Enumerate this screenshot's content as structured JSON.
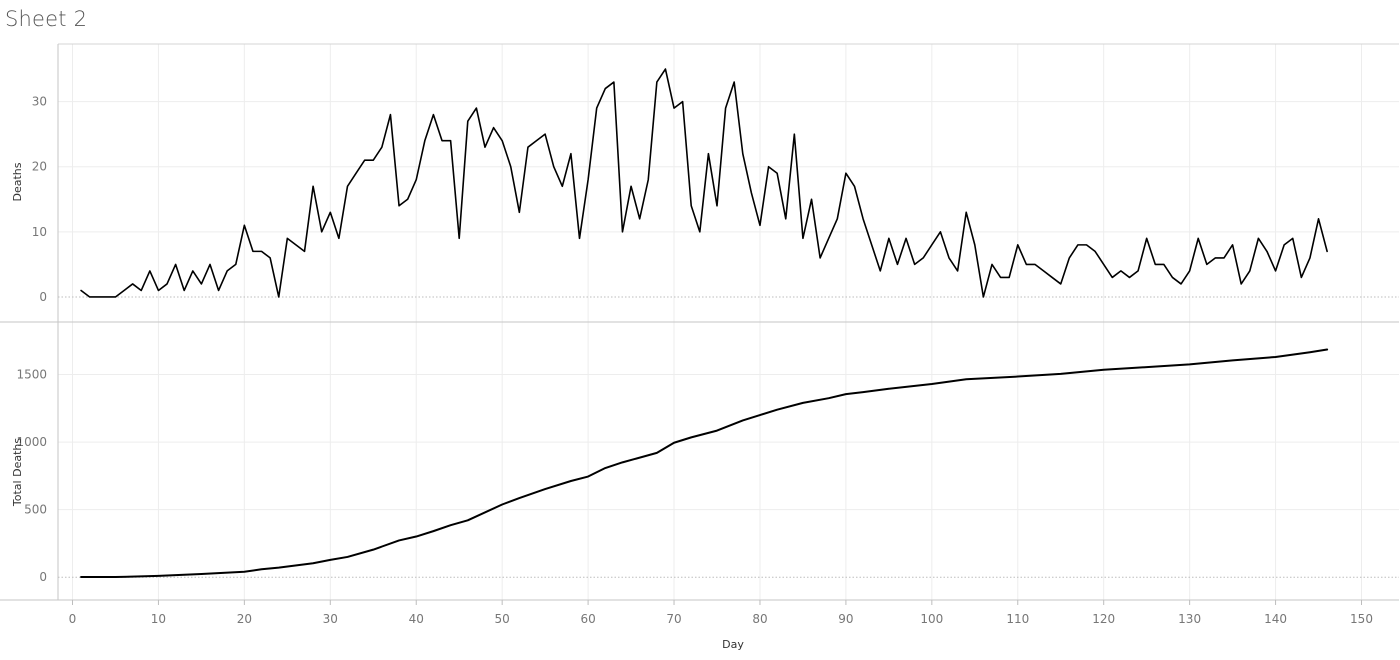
{
  "sheet": {
    "title": "Sheet 2"
  },
  "chart_data": {
    "type": "line",
    "xlabel": "Day",
    "xlim": [
      0,
      153
    ],
    "x_ticks": [
      0,
      10,
      20,
      30,
      40,
      50,
      60,
      70,
      80,
      90,
      100,
      110,
      120,
      130,
      140,
      150
    ],
    "grid": true,
    "line_color": "#000000",
    "panes": [
      {
        "ylabel": "Deaths",
        "ylim": [
          -2,
          37
        ],
        "y_ticks": [
          0,
          10,
          20,
          30
        ],
        "series": [
          {
            "x": [
              1,
              2,
              3,
              4,
              5,
              6,
              7,
              8,
              9,
              10,
              11,
              12,
              13,
              14,
              15,
              16,
              17,
              18,
              19,
              20,
              21,
              22,
              23,
              24,
              25,
              26,
              27,
              28,
              29,
              30,
              31,
              32,
              33,
              34,
              35,
              36,
              37,
              38,
              39,
              40,
              41,
              42,
              43,
              44,
              45,
              46,
              47,
              48,
              49,
              50,
              51,
              52,
              53,
              54,
              55,
              56,
              57,
              58,
              59,
              60,
              61,
              62,
              63,
              64,
              65,
              66,
              67,
              68,
              69,
              70,
              71,
              72,
              73,
              74,
              75,
              76,
              77,
              78,
              79,
              80,
              81,
              82,
              83,
              84,
              85,
              86,
              87,
              88,
              89,
              90,
              91,
              92,
              93,
              94,
              95,
              96,
              97,
              98,
              99,
              100,
              101,
              102,
              103,
              104,
              105,
              106,
              107,
              108,
              109,
              110,
              111,
              112,
              113,
              114,
              115,
              116,
              117,
              118,
              119,
              120,
              121,
              122,
              123,
              124,
              125,
              126,
              127,
              128,
              129,
              130,
              131,
              132,
              133,
              134,
              135,
              136,
              137,
              138,
              139,
              140,
              141,
              142,
              143,
              144,
              145,
              146
            ],
            "values": [
              1,
              0,
              0,
              0,
              0,
              1,
              2,
              1,
              4,
              1,
              2,
              5,
              1,
              4,
              2,
              5,
              1,
              4,
              5,
              11,
              7,
              7,
              6,
              0,
              9,
              8,
              7,
              17,
              10,
              13,
              9,
              17,
              19,
              21,
              21,
              23,
              28,
              14,
              15,
              18,
              24,
              28,
              24,
              24,
              9,
              27,
              29,
              23,
              26,
              24,
              20,
              13,
              23,
              24,
              25,
              20,
              17,
              22,
              9,
              18,
              29,
              32,
              33,
              10,
              17,
              12,
              18,
              33,
              35,
              29,
              30,
              14,
              10,
              22,
              14,
              29,
              33,
              22,
              16,
              11,
              20,
              19,
              12,
              25,
              9,
              15,
              6,
              9,
              12,
              19,
              17,
              12,
              8,
              4,
              9,
              5,
              9,
              5,
              6,
              8,
              10,
              6,
              4,
              13,
              8,
              0,
              5,
              3,
              3,
              8,
              5,
              5,
              4,
              3,
              2,
              6,
              8,
              8,
              7,
              5,
              3,
              4,
              3,
              4,
              9,
              5,
              5,
              3,
              2,
              4,
              9,
              5,
              6,
              6,
              8,
              2,
              4,
              9,
              7,
              4,
              8,
              9,
              3,
              6,
              12,
              7
            ]
          }
        ]
      },
      {
        "ylabel": "Total Deaths",
        "ylim": [
          -80,
          1800
        ],
        "y_ticks": [
          0,
          500,
          1000,
          1500
        ],
        "series": [
          {
            "x": [
              1,
              5,
              10,
              15,
              20,
              22,
              24,
              28,
              30,
              32,
              35,
              38,
              40,
              42,
              44,
              46,
              50,
              52,
              55,
              58,
              60,
              62,
              64,
              68,
              70,
              72,
              75,
              78,
              80,
              82,
              85,
              88,
              90,
              92,
              95,
              100,
              104,
              110,
              115,
              120,
              125,
              130,
              135,
              140,
              144,
              146
            ],
            "values": [
              1,
              1,
              10,
              24,
              40,
              59,
              71,
              103,
              128,
              150,
              204,
              272,
              301,
              341,
              385,
              421,
              538,
              586,
              652,
              712,
              745,
              808,
              850,
              920,
              995,
              1035,
              1085,
              1160,
              1200,
              1240,
              1290,
              1325,
              1355,
              1370,
              1395,
              1430,
              1465,
              1485,
              1505,
              1535,
              1555,
              1575,
              1605,
              1630,
              1665,
              1685
            ]
          }
        ]
      }
    ]
  }
}
